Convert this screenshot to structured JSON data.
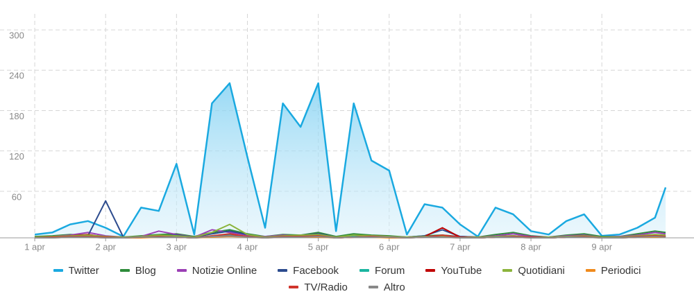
{
  "chart_data": {
    "type": "line",
    "x": [
      1,
      1.25,
      1.5,
      1.75,
      2,
      2.25,
      2.5,
      2.75,
      3,
      3.25,
      3.5,
      3.75,
      4,
      4.25,
      4.5,
      4.75,
      5,
      5.25,
      5.5,
      5.75,
      6,
      6.25,
      6.5,
      6.75,
      7,
      7.25,
      7.5,
      7.75,
      8,
      8.25,
      8.5,
      8.75,
      9,
      9.25,
      9.5,
      9.75,
      9.9
    ],
    "xlim": [
      0.51,
      10.3
    ],
    "xticks": [
      {
        "value": 1,
        "label": "1 apr"
      },
      {
        "value": 2,
        "label": "2 apr"
      },
      {
        "value": 3,
        "label": "3 apr"
      },
      {
        "value": 4,
        "label": "4 apr"
      },
      {
        "value": 5,
        "label": "5 apr"
      },
      {
        "value": 6,
        "label": "6 apr"
      },
      {
        "value": 7,
        "label": "7 apr"
      },
      {
        "value": 8,
        "label": "8 apr"
      },
      {
        "value": 9,
        "label": "9 apr"
      }
    ],
    "ylim": [
      0,
      330
    ],
    "yticks": [
      60,
      120,
      180,
      240,
      300
    ],
    "grid": true,
    "legend": "bottom",
    "series": [
      {
        "name": "Twitter",
        "color": "#1aa9e0",
        "area": true,
        "values": [
          5,
          8,
          20,
          25,
          15,
          2,
          45,
          40,
          110,
          5,
          200,
          230,
          120,
          15,
          200,
          165,
          230,
          10,
          200,
          115,
          100,
          5,
          50,
          45,
          20,
          2,
          45,
          35,
          10,
          5,
          25,
          35,
          3,
          5,
          15,
          30,
          75
        ]
      },
      {
        "name": "Blog",
        "color": "#2e8b3a",
        "values": [
          2,
          3,
          5,
          4,
          2,
          1,
          3,
          5,
          6,
          2,
          8,
          12,
          6,
          2,
          5,
          4,
          8,
          2,
          6,
          4,
          3,
          1,
          3,
          4,
          2,
          1,
          5,
          8,
          3,
          1,
          4,
          6,
          2,
          2,
          6,
          10,
          8
        ]
      },
      {
        "name": "Notizie Online",
        "color": "#9b3fb5",
        "values": [
          1,
          2,
          4,
          8,
          3,
          1,
          2,
          10,
          5,
          1,
          12,
          8,
          4,
          2,
          4,
          3,
          6,
          1,
          3,
          3,
          2,
          1,
          2,
          3,
          2,
          1,
          3,
          6,
          2,
          1,
          3,
          4,
          1,
          2,
          4,
          8,
          6
        ]
      },
      {
        "name": "Facebook",
        "color": "#2c4b8e",
        "values": [
          1,
          1,
          2,
          3,
          55,
          1,
          2,
          3,
          4,
          1,
          6,
          10,
          5,
          1,
          3,
          4,
          6,
          1,
          3,
          2,
          2,
          1,
          3,
          12,
          2,
          1,
          2,
          3,
          1,
          1,
          2,
          3,
          1,
          1,
          2,
          4,
          3
        ]
      },
      {
        "name": "Forum",
        "color": "#1ab5a0",
        "values": [
          0,
          1,
          1,
          2,
          1,
          0,
          1,
          2,
          2,
          0,
          3,
          5,
          2,
          1,
          2,
          2,
          3,
          0,
          2,
          2,
          1,
          0,
          1,
          2,
          1,
          0,
          1,
          2,
          1,
          0,
          1,
          2,
          0,
          1,
          1,
          2,
          2
        ]
      },
      {
        "name": "YouTube",
        "color": "#c00000",
        "values": [
          0,
          1,
          3,
          5,
          1,
          0,
          1,
          2,
          1,
          0,
          2,
          3,
          2,
          0,
          2,
          1,
          3,
          0,
          1,
          2,
          1,
          0,
          2,
          15,
          1,
          0,
          1,
          2,
          1,
          0,
          1,
          2,
          0,
          0,
          1,
          3,
          2
        ]
      },
      {
        "name": "Quotidiani",
        "color": "#8bb43c",
        "values": [
          1,
          2,
          3,
          4,
          2,
          1,
          2,
          4,
          3,
          1,
          8,
          20,
          5,
          1,
          3,
          4,
          5,
          1,
          4,
          3,
          2,
          1,
          2,
          3,
          1,
          1,
          2,
          3,
          1,
          1,
          2,
          3,
          1,
          1,
          3,
          5,
          4
        ]
      },
      {
        "name": "Periodici",
        "color": "#f08a1c",
        "values": [
          0,
          0,
          1,
          1,
          0,
          0,
          0,
          1,
          1,
          0,
          1,
          2,
          1,
          0,
          1,
          1,
          1,
          0,
          1,
          1,
          0,
          0,
          1,
          1,
          0,
          0,
          1,
          1,
          0,
          0,
          1,
          1,
          0,
          0,
          1,
          1,
          1
        ]
      },
      {
        "name": "TV/Radio",
        "color": "#d0342c",
        "values": [
          0,
          1,
          2,
          2,
          1,
          0,
          1,
          2,
          1,
          0,
          3,
          6,
          2,
          0,
          2,
          2,
          3,
          0,
          1,
          2,
          1,
          0,
          1,
          4,
          1,
          0,
          1,
          2,
          1,
          0,
          1,
          2,
          0,
          0,
          2,
          3,
          2
        ]
      },
      {
        "name": "Altro",
        "color": "#888888",
        "values": [
          0,
          0,
          1,
          1,
          0,
          0,
          1,
          1,
          1,
          0,
          2,
          3,
          1,
          0,
          1,
          1,
          2,
          0,
          1,
          1,
          1,
          0,
          1,
          1,
          0,
          0,
          1,
          1,
          0,
          0,
          1,
          1,
          0,
          0,
          1,
          2,
          1
        ]
      }
    ]
  }
}
